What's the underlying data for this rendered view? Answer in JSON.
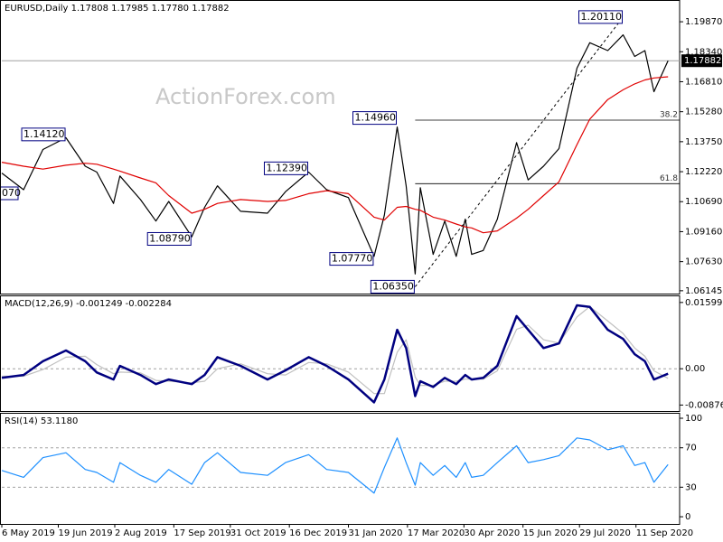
{
  "chart_data": [
    {
      "type": "line",
      "title": "EURUSD,Daily  1.17808 1.17985 1.17780 1.17882",
      "watermark": "ActionForex.com",
      "xlim": [
        "6 May 2019",
        "15 Oct 2020"
      ],
      "x": [
        "6 May 2019",
        "23 May 2019",
        "7 Jun 2019",
        "25 Jun 2019",
        "10 Jul 2019",
        "19 Jul 2019",
        "1 Aug 2019",
        "6 Aug 2019",
        "22 Aug 2019",
        "3 Sep 2019",
        "13 Sep 2019",
        "1 Oct 2019",
        "11 Oct 2019",
        "21 Oct 2019",
        "8 Nov 2019",
        "29 Nov 2019",
        "13 Dec 2019",
        "31 Dec 2019",
        "14 Jan 2020",
        "31 Jan 2020",
        "20 Feb 2020",
        "28 Feb 2020",
        "9 Mar 2020",
        "16 Mar 2020",
        "23 Mar 2020",
        "27 Mar 2020",
        "6 Apr 2020",
        "15 Apr 2020",
        "24 Apr 2020",
        "1 May 2020",
        "6 May 2020",
        "15 May 2020",
        "26 May 2020",
        "10 Jun 2020",
        "19 Jun 2020",
        "1 Jul 2020",
        "13 Jul 2020",
        "27 Jul 2020",
        "6 Aug 2020",
        "20 Aug 2020",
        "1 Sep 2020",
        "10 Sep 2020",
        "18 Sep 2020",
        "25 Sep 2020",
        "6 Oct 2020"
      ],
      "series": [
        {
          "color": "#000000",
          "values": [
            1.1215,
            1.113,
            1.1335,
            1.1395,
            1.125,
            1.122,
            1.106,
            1.12,
            1.108,
            1.097,
            1.107,
            1.089,
            1.104,
            1.115,
            1.102,
            1.101,
            1.112,
            1.122,
            1.113,
            1.109,
            1.079,
            1.1,
            1.145,
            1.115,
            1.07,
            1.114,
            1.08,
            1.097,
            1.079,
            1.098,
            1.08,
            1.082,
            1.098,
            1.137,
            1.118,
            1.125,
            1.134,
            1.175,
            1.188,
            1.184,
            1.192,
            1.181,
            1.184,
            1.163,
            1.1788
          ]
        },
        {
          "color": "#e00000",
          "values": [
            1.127,
            1.125,
            1.1235,
            1.1255,
            1.1265,
            1.126,
            1.1235,
            1.1225,
            1.119,
            1.1165,
            1.11,
            1.101,
            1.103,
            1.106,
            1.108,
            1.107,
            1.1075,
            1.111,
            1.1125,
            1.111,
            1.099,
            1.0975,
            1.104,
            1.1045,
            1.103,
            1.1025,
            1.099,
            1.0975,
            1.0955,
            1.094,
            1.0935,
            1.091,
            1.092,
            1.0985,
            1.103,
            1.11,
            1.117,
            1.136,
            1.149,
            1.159,
            1.164,
            1.167,
            1.169,
            1.17,
            1.1706
          ]
        }
      ],
      "ylim": [
        1.06,
        1.2098
      ],
      "yticks": [
        {
          "value": 1.1987,
          "label": "1.19870"
        },
        {
          "value": 1.1834,
          "label": "1.18340"
        },
        {
          "value": 1.1681,
          "label": "1.16810"
        },
        {
          "value": 1.1528,
          "label": "1.15280"
        },
        {
          "value": 1.1375,
          "label": "1.13750"
        },
        {
          "value": 1.1222,
          "label": "1.12220"
        },
        {
          "value": 1.1069,
          "label": "1.10690"
        },
        {
          "value": 1.0916,
          "label": "1.09160"
        },
        {
          "value": 1.0763,
          "label": "1.07630"
        },
        1.06145
      ],
      "last": {
        "value": 1.17882,
        "label": "1.17882"
      },
      "annotations": [
        {
          "x": "25 Jun 2019",
          "value": 1.1412,
          "label": "1.14120"
        },
        {
          "x": "1 Oct 2019",
          "value": 1.0879,
          "label": "1.08790"
        },
        {
          "x": "31 Dec 2019",
          "value": 1.1239,
          "label": "1.12390"
        },
        {
          "x": "20 Feb 2020",
          "value": 1.0777,
          "label": "1.07770"
        },
        {
          "x": "9 Mar 2020",
          "value": 1.1496,
          "label": "1.14960"
        },
        {
          "x": "23 Mar 2020",
          "value": 1.0635,
          "label": "1.06350"
        },
        {
          "x": "1 Sep 2020",
          "value": 1.2011,
          "label": "1.20110"
        }
      ],
      "fib_levels": [
        {
          "value": 1.1485,
          "label": "38.2"
        },
        {
          "value": 1.1161,
          "label": "61.8"
        }
      ],
      "partial_labels": [
        "070"
      ]
    },
    {
      "type": "line",
      "title": "MACD(12,26,9) -0.001249 -0.002284",
      "xlim": [
        "6 May 2019",
        "15 Oct 2020"
      ],
      "x": [
        "6 May 2019",
        "23 May 2019",
        "7 Jun 2019",
        "25 Jun 2019",
        "10 Jul 2019",
        "19 Jul 2019",
        "1 Aug 2019",
        "6 Aug 2019",
        "22 Aug 2019",
        "3 Sep 2019",
        "13 Sep 2019",
        "1 Oct 2019",
        "11 Oct 2019",
        "21 Oct 2019",
        "8 Nov 2019",
        "29 Nov 2019",
        "13 Dec 2019",
        "31 Dec 2019",
        "14 Jan 2020",
        "31 Jan 2020",
        "20 Feb 2020",
        "28 Feb 2020",
        "9 Mar 2020",
        "16 Mar 2020",
        "23 Mar 2020",
        "27 Mar 2020",
        "6 Apr 2020",
        "15 Apr 2020",
        "24 Apr 2020",
        "1 May 2020",
        "6 May 2020",
        "15 May 2020",
        "26 May 2020",
        "10 Jun 2020",
        "19 Jun 2020",
        "1 Jul 2020",
        "13 Jul 2020",
        "27 Jul 2020",
        "6 Aug 2020",
        "20 Aug 2020",
        "1 Sep 2020",
        "10 Sep 2020",
        "18 Sep 2020",
        "25 Sep 2020",
        "6 Oct 2020"
      ],
      "series": [
        {
          "color": "#c0c0c0",
          "values": [
            -0.0018,
            -0.0018,
            -0.0002,
            0.0028,
            0.003,
            0.001,
            -0.0012,
            -0.0008,
            -0.001,
            -0.0028,
            -0.003,
            -0.0034,
            -0.003,
            0.0,
            0.0012,
            -0.0012,
            -0.0015,
            0.0015,
            0.0012,
            -0.0008,
            -0.006,
            -0.006,
            0.004,
            0.007,
            -0.002,
            -0.004,
            -0.004,
            -0.003,
            -0.003,
            -0.0025,
            -0.0025,
            -0.0025,
            -0.0005,
            0.0095,
            0.0105,
            0.007,
            0.0062,
            0.0125,
            0.015,
            0.0115,
            0.0085,
            0.005,
            0.003,
            -0.0005,
            -0.0023
          ]
        },
        {
          "color": "#000080",
          "values": [
            -0.0022,
            -0.0015,
            0.0018,
            0.0044,
            0.0018,
            -0.0009,
            -0.0026,
            0.0007,
            -0.0015,
            -0.0037,
            -0.0026,
            -0.0037,
            -0.0015,
            0.0028,
            0.0007,
            -0.0026,
            -0.0004,
            0.0028,
            0.0007,
            -0.0026,
            -0.0081,
            -0.0026,
            0.0094,
            0.005,
            -0.0066,
            -0.003,
            -0.0044,
            -0.0022,
            -0.0037,
            -0.0015,
            -0.0026,
            -0.0022,
            0.0007,
            0.0127,
            0.0094,
            0.005,
            0.0061,
            0.0153,
            0.0149,
            0.0094,
            0.0072,
            0.0035,
            0.0018,
            -0.0026,
            -0.0012
          ]
        }
      ],
      "ylim": [
        -0.0102,
        0.0177
      ],
      "yticks": [
        0.015991,
        {
          "value": 0,
          "label": "0.00"
        },
        -0.00876
      ],
      "levels": [
        0
      ]
    },
    {
      "type": "line",
      "title": "RSI(14) 53.1180",
      "xlim": [
        "6 May 2019",
        "15 Oct 2020"
      ],
      "x": [
        "6 May 2019",
        "23 May 2019",
        "7 Jun 2019",
        "25 Jun 2019",
        "10 Jul 2019",
        "19 Jul 2019",
        "1 Aug 2019",
        "6 Aug 2019",
        "22 Aug 2019",
        "3 Sep 2019",
        "13 Sep 2019",
        "1 Oct 2019",
        "11 Oct 2019",
        "21 Oct 2019",
        "8 Nov 2019",
        "29 Nov 2019",
        "13 Dec 2019",
        "31 Dec 2019",
        "14 Jan 2020",
        "31 Jan 2020",
        "20 Feb 2020",
        "28 Feb 2020",
        "9 Mar 2020",
        "16 Mar 2020",
        "23 Mar 2020",
        "27 Mar 2020",
        "6 Apr 2020",
        "15 Apr 2020",
        "24 Apr 2020",
        "1 May 2020",
        "6 May 2020",
        "15 May 2020",
        "26 May 2020",
        "10 Jun 2020",
        "19 Jun 2020",
        "1 Jul 2020",
        "13 Jul 2020",
        "27 Jul 2020",
        "6 Aug 2020",
        "20 Aug 2020",
        "1 Sep 2020",
        "10 Sep 2020",
        "18 Sep 2020",
        "25 Sep 2020",
        "6 Oct 2020"
      ],
      "series": [
        {
          "color": "#1e90ff",
          "values": [
            47,
            40,
            60,
            65,
            48,
            45,
            35,
            55,
            42,
            35,
            48,
            33,
            55,
            65,
            45,
            42,
            55,
            63,
            48,
            45,
            24,
            50,
            80,
            55,
            32,
            55,
            42,
            52,
            40,
            55,
            40,
            42,
            55,
            72,
            55,
            58,
            62,
            80,
            78,
            68,
            72,
            52,
            55,
            35,
            53
          ]
        }
      ],
      "ylim": [
        -7.3,
        105.5
      ],
      "yticks": [
        100,
        70,
        30,
        0
      ],
      "levels": [
        30,
        70
      ],
      "xticks": [
        "6 May 2019",
        "19 Jun 2019",
        "2 Aug 2019",
        "17 Sep 2019",
        "31 Oct 2019",
        "16 Dec 2019",
        "31 Jan 2020",
        "17 Mar 2020",
        "30 Apr 2020",
        "15 Jun 2020",
        "29 Jul 2020",
        "11 Sep 2020"
      ]
    }
  ]
}
